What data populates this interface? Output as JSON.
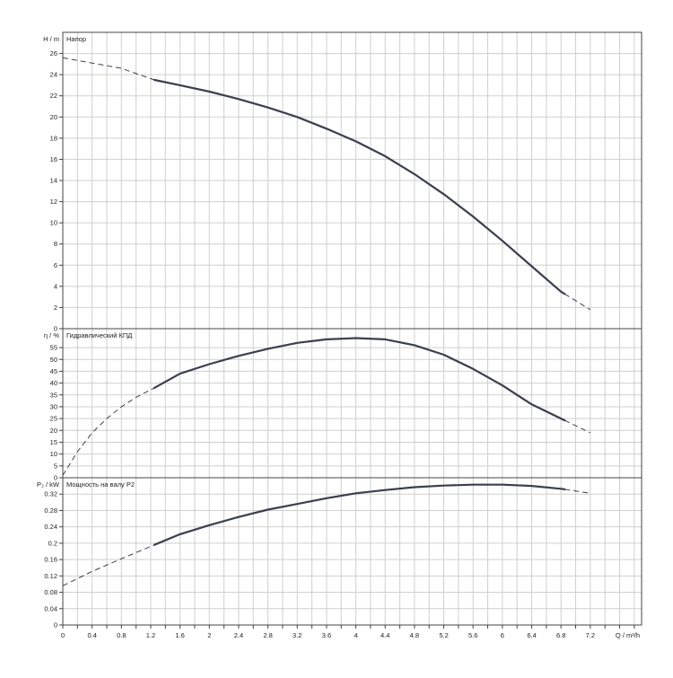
{
  "chart_data": {
    "type": "line",
    "x": {
      "label": "Q / m³/h",
      "ticks": [
        "0",
        "0.4",
        "0.8",
        "1.2",
        "1.6",
        "2",
        "2.4",
        "2.8",
        "3.2",
        "3.6",
        "4",
        "4.4",
        "4.8",
        "5.2",
        "5.6",
        "6",
        "6.4",
        "6.8",
        "7.2"
      ],
      "range": [
        0,
        7.9
      ]
    },
    "panels": [
      {
        "id": "head",
        "title": "Напор",
        "ylabel": "H / m",
        "ylim": [
          0,
          28
        ],
        "yticks": [
          "0",
          "2",
          "4",
          "6",
          "8",
          "10",
          "12",
          "14",
          "16",
          "18",
          "20",
          "22",
          "24",
          "26"
        ],
        "grid": true,
        "series": [
          {
            "points": [
              [
                0,
                25.6
              ],
              [
                0.4,
                25.1
              ],
              [
                0.8,
                24.6
              ],
              [
                1.25,
                23.5
              ],
              [
                1.6,
                23.0
              ],
              [
                2.0,
                22.4
              ],
              [
                2.4,
                21.7
              ],
              [
                2.8,
                20.9
              ],
              [
                3.2,
                20.0
              ],
              [
                3.6,
                18.9
              ],
              [
                4.0,
                17.7
              ],
              [
                4.4,
                16.3
              ],
              [
                4.8,
                14.6
              ],
              [
                5.2,
                12.7
              ],
              [
                5.6,
                10.6
              ],
              [
                6.0,
                8.3
              ],
              [
                6.4,
                5.9
              ],
              [
                6.8,
                3.5
              ],
              [
                7.2,
                1.8
              ]
            ],
            "solid_range": [
              1.25,
              6.85
            ]
          }
        ]
      },
      {
        "id": "efficiency",
        "title": "Гидравлический КПД",
        "ylabel": "η / %",
        "ylim": [
          0,
          63
        ],
        "yticks": [
          "0",
          "5",
          "10",
          "15",
          "20",
          "25",
          "30",
          "35",
          "40",
          "45",
          "50",
          "55"
        ],
        "grid": true,
        "series": [
          {
            "points": [
              [
                0,
                1
              ],
              [
                0.2,
                11
              ],
              [
                0.4,
                19
              ],
              [
                0.6,
                25
              ],
              [
                0.8,
                30
              ],
              [
                1.0,
                34
              ],
              [
                1.25,
                38
              ],
              [
                1.6,
                44
              ],
              [
                2.0,
                48
              ],
              [
                2.4,
                51.5
              ],
              [
                2.8,
                54.5
              ],
              [
                3.2,
                57
              ],
              [
                3.6,
                58.5
              ],
              [
                4.0,
                59
              ],
              [
                4.4,
                58.5
              ],
              [
                4.8,
                56
              ],
              [
                5.2,
                52
              ],
              [
                5.6,
                46
              ],
              [
                6.0,
                39
              ],
              [
                6.4,
                31
              ],
              [
                6.8,
                25
              ],
              [
                7.2,
                19
              ]
            ],
            "solid_range": [
              1.25,
              6.85
            ]
          }
        ]
      },
      {
        "id": "power",
        "title": "Мощность на валу P2",
        "ylabel": "P₂ / kW",
        "ylim": [
          0,
          0.36
        ],
        "yticks": [
          "0",
          "0.04",
          "0.08",
          "0.12",
          "0.16",
          "0.2",
          "0.24",
          "0.28",
          "0.32"
        ],
        "grid": true,
        "series": [
          {
            "points": [
              [
                0,
                0.096
              ],
              [
                0.4,
                0.131
              ],
              [
                0.8,
                0.162
              ],
              [
                1.25,
                0.196
              ],
              [
                1.6,
                0.222
              ],
              [
                2.0,
                0.244
              ],
              [
                2.4,
                0.264
              ],
              [
                2.8,
                0.282
              ],
              [
                3.2,
                0.296
              ],
              [
                3.6,
                0.31
              ],
              [
                4.0,
                0.322
              ],
              [
                4.4,
                0.33
              ],
              [
                4.8,
                0.337
              ],
              [
                5.2,
                0.341
              ],
              [
                5.6,
                0.343
              ],
              [
                6.0,
                0.343
              ],
              [
                6.4,
                0.34
              ],
              [
                6.8,
                0.333
              ],
              [
                7.2,
                0.322
              ]
            ],
            "solid_range": [
              1.25,
              6.85
            ]
          }
        ]
      }
    ],
    "colors": {
      "curve": "#3b3f4d",
      "grid": "#cfcfcf",
      "frame": "#444444",
      "text": "#222222",
      "background": "#ffffff"
    }
  }
}
